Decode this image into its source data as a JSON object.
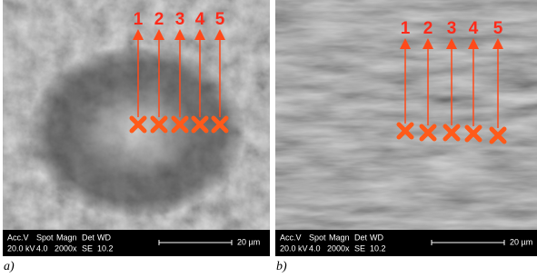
{
  "panels": [
    {
      "label": "a)",
      "markers": [
        "1",
        "2",
        "3",
        "4",
        "5"
      ],
      "info": {
        "headers": [
          "Acc.V",
          "Spot",
          "Magn",
          "Det",
          "WD"
        ],
        "values": [
          "20.0 kV",
          "4.0",
          "2000x",
          "SE",
          "10.2"
        ],
        "scale": "20 µm"
      }
    },
    {
      "label": "b)",
      "markers": [
        "1",
        "2",
        "3",
        "4",
        "5"
      ],
      "info": {
        "headers": [
          "Acc.V",
          "Spot",
          "Magn",
          "Det",
          "WD"
        ],
        "values": [
          "20.0 kV",
          "4.0",
          "2000x",
          "SE",
          "10.2"
        ],
        "scale": "20 µm"
      }
    }
  ]
}
